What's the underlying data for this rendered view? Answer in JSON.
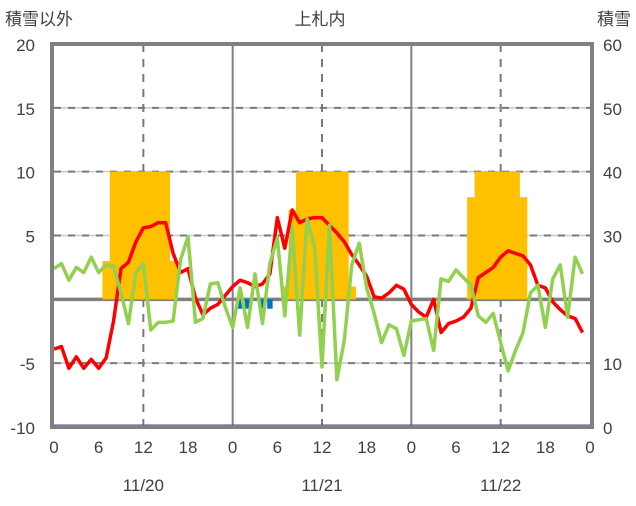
{
  "chart_data": {
    "type": "line",
    "title": "上札内",
    "ylabel_left": "積雪以外",
    "ylabel_right": "積雪",
    "ylim_left": [
      -10,
      20
    ],
    "ylim_right": [
      0,
      60
    ],
    "yticks_left": [
      "20",
      "15",
      "10",
      "5",
      "0",
      "-5",
      "-10"
    ],
    "yticks_right": [
      "60",
      "50",
      "40",
      "30",
      "20",
      "10",
      "0"
    ],
    "xlim_hours": [
      0,
      72
    ],
    "xtick_labels": [
      "0",
      "6",
      "12",
      "18",
      "0",
      "6",
      "12",
      "18",
      "0",
      "6",
      "12",
      "18",
      "0"
    ],
    "date_labels": [
      "11/20",
      "11/21",
      "11/22"
    ],
    "grid": true,
    "colors": {
      "red": "#ff0000",
      "green": "#92d050",
      "orange": "#ffc000",
      "blue": "#0070c0",
      "purple": "#7030a0",
      "axis": "#808080"
    },
    "bars_orange": {
      "hours": [
        7,
        8,
        9,
        10,
        11,
        12,
        13,
        14,
        15,
        16,
        31,
        32,
        33,
        34,
        35,
        36,
        37,
        38,
        39,
        40,
        56,
        57,
        58,
        59,
        60,
        61,
        62,
        63
      ],
      "values": [
        3,
        10,
        10,
        10,
        10,
        10,
        10,
        10,
        10,
        3,
        1,
        7,
        10,
        10,
        10,
        10,
        10,
        10,
        10,
        1,
        8,
        10,
        10,
        10,
        10,
        10,
        10,
        8
      ]
    },
    "bars_blue": {
      "hours": [
        25,
        26,
        28,
        29
      ],
      "values": [
        -0.5,
        -0.5,
        -0.5,
        -0.5
      ]
    },
    "series": [
      {
        "name": "red",
        "axis": "left",
        "values": [
          -3.9,
          -3.7,
          -5.4,
          -4.5,
          -5.4,
          -4.7,
          -5.4,
          -4.6,
          -1.7,
          2.4,
          2.9,
          4.5,
          5.6,
          5.7,
          6.0,
          6.0,
          3.6,
          2.1,
          2.4,
          0.1,
          -1.2,
          -0.7,
          -0.4,
          0.3,
          1.0,
          1.5,
          1.3,
          1.0,
          1.2,
          2.0,
          6.4,
          4.0,
          7.0,
          6.0,
          6.3,
          6.4,
          6.4,
          5.8,
          5.2,
          4.5,
          3.5,
          2.7,
          1.8,
          0.2,
          0.1,
          0.5,
          1.1,
          0.8,
          -0.4,
          -1.0,
          -1.4,
          0.0,
          -2.6,
          -1.9,
          -1.7,
          -1.4,
          -0.7,
          1.7,
          2.1,
          2.5,
          3.3,
          3.8,
          3.6,
          3.4,
          2.7,
          1.1,
          0.9,
          -0.2,
          -0.8,
          -1.3,
          -1.5,
          -2.6
        ]
      },
      {
        "name": "green",
        "axis": "left",
        "values": [
          2.4,
          2.8,
          1.5,
          2.5,
          2.1,
          3.3,
          2.1,
          2.7,
          2.6,
          0.5,
          -1.9,
          2.1,
          2.8,
          -2.4,
          -1.8,
          -1.8,
          -1.7,
          3.1,
          4.9,
          -1.8,
          -1.5,
          1.2,
          1.3,
          -0.6,
          -2.2,
          0.9,
          -2.2,
          2.0,
          -1.9,
          2.8,
          4.8,
          -1.3,
          5.6,
          -2.8,
          6.3,
          4.1,
          -5.3,
          5.8,
          -6.3,
          -3.2,
          2.7,
          4.4,
          0.9,
          -1.1,
          -3.4,
          -2.0,
          -2.3,
          -4.4,
          -1.7,
          -1.6,
          -1.5,
          -4.0,
          1.6,
          1.4,
          2.3,
          1.7,
          1.1,
          -1.3,
          -1.8,
          -1.1,
          -3.4,
          -5.6,
          -4.0,
          -2.6,
          0.5,
          1.1,
          -2.2,
          1.6,
          2.7,
          -1.4,
          3.3,
          2.0
        ]
      },
      {
        "name": "purple",
        "axis": "right",
        "values": [
          0,
          0
        ]
      }
    ]
  }
}
